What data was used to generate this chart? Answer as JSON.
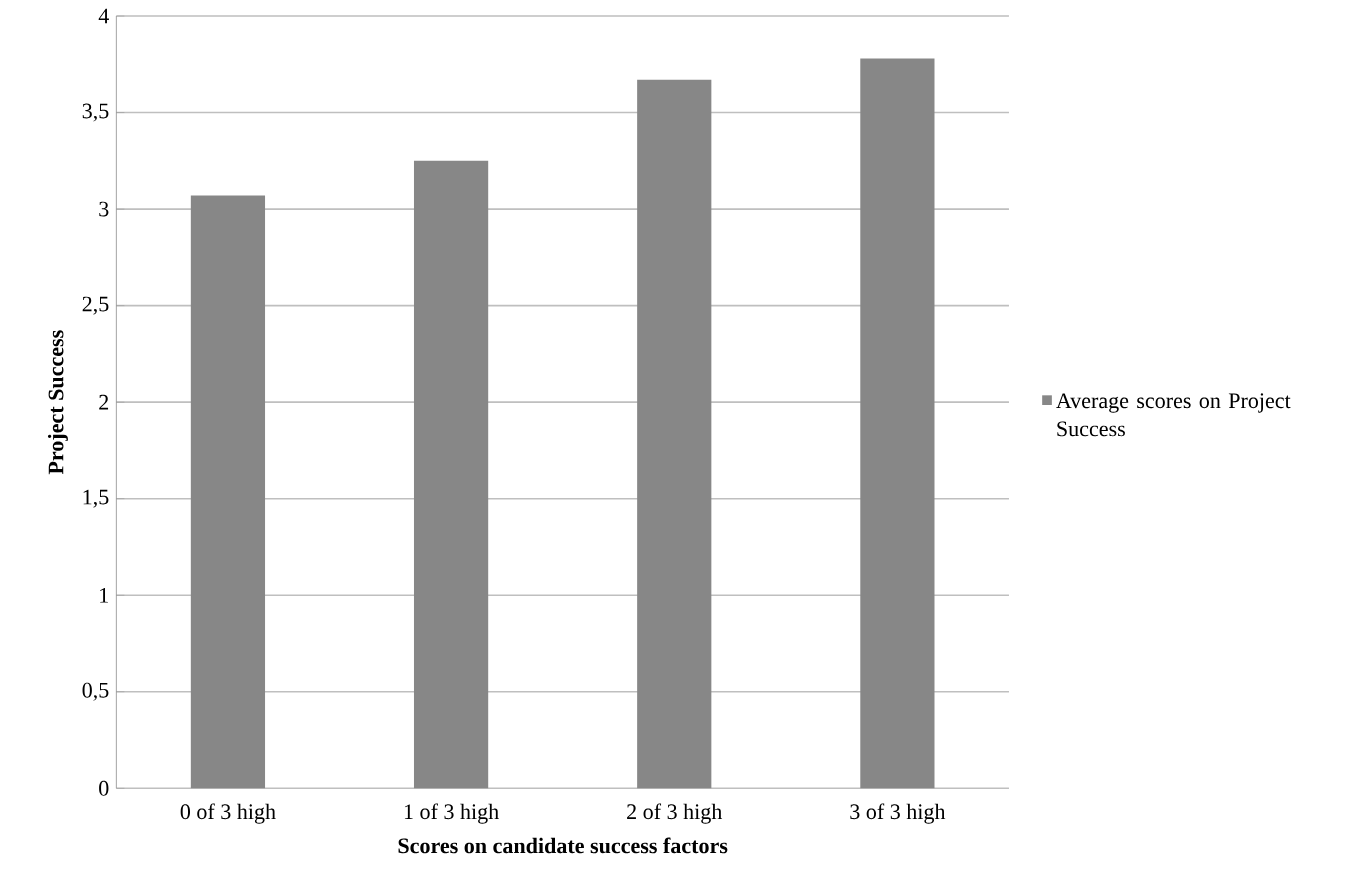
{
  "chart_data": {
    "type": "bar",
    "xlabel": "Scores on candidate success factors",
    "ylabel": "Project Success",
    "categories": [
      "0 of 3 high",
      "1 of 3 high",
      "2 of 3 high",
      "3 of 3 high"
    ],
    "series": [
      {
        "name": "Average scores on Project Success",
        "color": "#878787",
        "values": [
          3.07,
          3.25,
          3.67,
          3.78
        ]
      }
    ],
    "ylim": [
      0,
      4
    ],
    "yticks": [
      0,
      {
        "value": 0.5,
        "label": "0,5"
      },
      1,
      {
        "value": 1.5,
        "label": "1,5"
      },
      2,
      {
        "value": 2.5,
        "label": "2,5"
      },
      3,
      {
        "value": 3.5,
        "label": "3,5"
      },
      4
    ],
    "grid": "y",
    "legend": "right"
  }
}
